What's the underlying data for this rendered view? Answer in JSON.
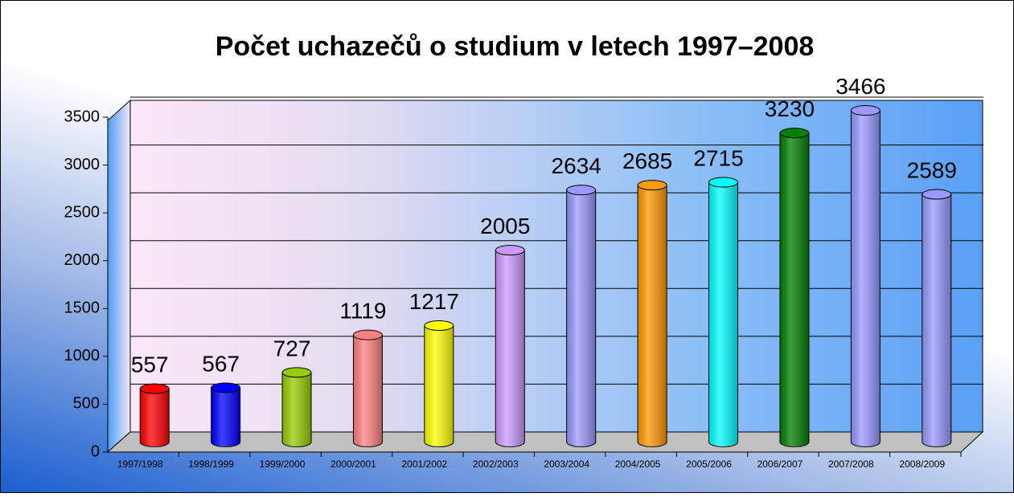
{
  "chart_data": {
    "type": "bar",
    "title": "Počet uchazečů o studium v letech 1997–2008",
    "categories": [
      "1997/1998",
      "1998/1999",
      "1999/2000",
      "2000/2001",
      "2001/2002",
      "2002/2003",
      "2003/2004",
      "2004/2005",
      "2005/2006",
      "2006/2007",
      "2007/2008",
      "2008/2009"
    ],
    "values": [
      557,
      567,
      727,
      1119,
      1217,
      2005,
      2634,
      2685,
      2715,
      3230,
      3466,
      2589
    ],
    "colors": [
      "#ff0000",
      "#0000ff",
      "#99cc00",
      "#ff8080",
      "#ffff00",
      "#cc99ff",
      "#9999ff",
      "#ff9900",
      "#00ffff",
      "#008000",
      "#9999ff",
      "#9999ff"
    ],
    "ylim": [
      0,
      3500
    ],
    "yticks": [
      0,
      500,
      1000,
      1500,
      2000,
      2500,
      3000,
      3500
    ],
    "grid": true
  }
}
